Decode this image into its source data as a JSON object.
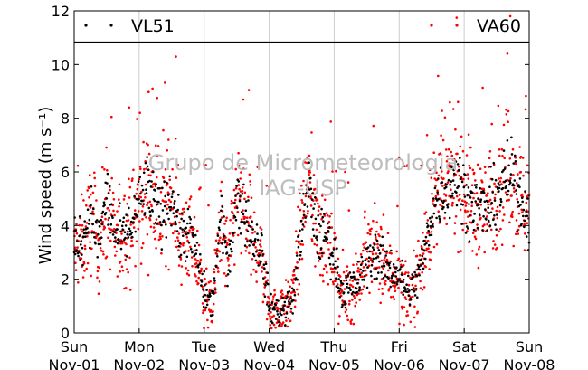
{
  "chart_data": {
    "type": "scatter",
    "title": "",
    "xlabel": "",
    "ylabel": "Wind speed (m s⁻¹)",
    "ylim": [
      0,
      12
    ],
    "y_ticks": [
      "0",
      "2",
      "4",
      "6",
      "8",
      "10",
      "12"
    ],
    "x_ticks": [
      {
        "day": "Sun",
        "date": "Nov-01"
      },
      {
        "day": "Mon",
        "date": "Nov-02"
      },
      {
        "day": "Tue",
        "date": "Nov-03"
      },
      {
        "day": "Wed",
        "date": "Nov-04"
      },
      {
        "day": "Thu",
        "date": "Nov-05"
      },
      {
        "day": "Fri",
        "date": "Nov-06"
      },
      {
        "day": "Sat",
        "date": "Nov-07"
      },
      {
        "day": "Sun",
        "date": "Nov-08"
      }
    ],
    "xlim": [
      "Nov-01",
      "Nov-08"
    ],
    "grid": "vertical",
    "legend_placement": "top",
    "watermark": {
      "line1": "Grupo de Micrometeorologia",
      "line2": "IAG-USP"
    },
    "series": [
      {
        "name": "VL51",
        "color": "#000000",
        "marker": "dot",
        "profile": [
          [
            "Nov-01 00:00",
            3.2
          ],
          [
            "Nov-01 03:00",
            3.5
          ],
          [
            "Nov-01 06:00",
            4.5
          ],
          [
            "Nov-01 09:00",
            3.3
          ],
          [
            "Nov-01 12:00",
            5.2
          ],
          [
            "Nov-01 15:00",
            3.6
          ],
          [
            "Nov-01 18:00",
            3.5
          ],
          [
            "Nov-01 21:00",
            3.9
          ],
          [
            "Nov-02 00:00",
            4.8
          ],
          [
            "Nov-02 03:00",
            5.5
          ],
          [
            "Nov-02 06:00",
            4.6
          ],
          [
            "Nov-02 09:00",
            4.5
          ],
          [
            "Nov-02 12:00",
            5.3
          ],
          [
            "Nov-02 15:00",
            3.6
          ],
          [
            "Nov-02 18:00",
            3.8
          ],
          [
            "Nov-02 21:00",
            3.0
          ],
          [
            "Nov-03 00:00",
            1.5
          ],
          [
            "Nov-03 03:00",
            1.0
          ],
          [
            "Nov-03 06:00",
            4.2
          ],
          [
            "Nov-03 09:00",
            2.6
          ],
          [
            "Nov-03 12:00",
            5.0
          ],
          [
            "Nov-03 15:00",
            4.5
          ],
          [
            "Nov-03 18:00",
            3.5
          ],
          [
            "Nov-03 21:00",
            3.2
          ],
          [
            "Nov-04 00:00",
            1.0
          ],
          [
            "Nov-04 03:00",
            0.8
          ],
          [
            "Nov-04 06:00",
            0.9
          ],
          [
            "Nov-04 09:00",
            1.4
          ],
          [
            "Nov-04 12:00",
            4.0
          ],
          [
            "Nov-04 15:00",
            5.4
          ],
          [
            "Nov-04 18:00",
            3.5
          ],
          [
            "Nov-04 21:00",
            3.7
          ],
          [
            "Nov-05 00:00",
            2.8
          ],
          [
            "Nov-05 03:00",
            1.5
          ],
          [
            "Nov-05 06:00",
            1.7
          ],
          [
            "Nov-05 09:00",
            1.9
          ],
          [
            "Nov-05 12:00",
            2.6
          ],
          [
            "Nov-05 15:00",
            3.0
          ],
          [
            "Nov-05 18:00",
            2.6
          ],
          [
            "Nov-05 21:00",
            2.4
          ],
          [
            "Nov-06 00:00",
            2.2
          ],
          [
            "Nov-06 03:00",
            1.5
          ],
          [
            "Nov-06 06:00",
            1.8
          ],
          [
            "Nov-06 09:00",
            2.8
          ],
          [
            "Nov-06 12:00",
            4.5
          ],
          [
            "Nov-06 15:00",
            5.2
          ],
          [
            "Nov-06 18:00",
            5.4
          ],
          [
            "Nov-06 21:00",
            5.9
          ],
          [
            "Nov-07 00:00",
            5.2
          ],
          [
            "Nov-07 03:00",
            4.8
          ],
          [
            "Nov-07 06:00",
            4.7
          ],
          [
            "Nov-07 09:00",
            4.5
          ],
          [
            "Nov-07 12:00",
            5.2
          ],
          [
            "Nov-07 15:00",
            5.6
          ],
          [
            "Nov-07 18:00",
            5.8
          ],
          [
            "Nov-07 21:00",
            5.0
          ],
          [
            "Nov-08 00:00",
            4.2
          ]
        ],
        "n_points": 900
      },
      {
        "name": "VA60",
        "color": "#ff0000",
        "marker": "dot",
        "profile": [
          [
            "Nov-01 00:00",
            3.0
          ],
          [
            "Nov-01 03:00",
            3.3
          ],
          [
            "Nov-01 06:00",
            4.3
          ],
          [
            "Nov-01 09:00",
            3.2
          ],
          [
            "Nov-01 12:00",
            4.8
          ],
          [
            "Nov-01 15:00",
            3.4
          ],
          [
            "Nov-01 18:00",
            3.5
          ],
          [
            "Nov-01 21:00",
            4.0
          ],
          [
            "Nov-02 00:00",
            4.7
          ],
          [
            "Nov-02 03:00",
            5.4
          ],
          [
            "Nov-02 06:00",
            4.6
          ],
          [
            "Nov-02 09:00",
            4.5
          ],
          [
            "Nov-02 12:00",
            5.4
          ],
          [
            "Nov-02 15:00",
            3.5
          ],
          [
            "Nov-02 18:00",
            3.6
          ],
          [
            "Nov-02 21:00",
            2.8
          ],
          [
            "Nov-03 00:00",
            1.4
          ],
          [
            "Nov-03 03:00",
            0.9
          ],
          [
            "Nov-03 06:00",
            4.0
          ],
          [
            "Nov-03 09:00",
            2.6
          ],
          [
            "Nov-03 12:00",
            5.2
          ],
          [
            "Nov-03 15:00",
            4.3
          ],
          [
            "Nov-03 18:00",
            3.3
          ],
          [
            "Nov-03 21:00",
            3.0
          ],
          [
            "Nov-04 00:00",
            1.0
          ],
          [
            "Nov-04 03:00",
            0.8
          ],
          [
            "Nov-04 06:00",
            0.9
          ],
          [
            "Nov-04 09:00",
            1.5
          ],
          [
            "Nov-04 12:00",
            4.1
          ],
          [
            "Nov-04 15:00",
            5.6
          ],
          [
            "Nov-04 18:00",
            3.6
          ],
          [
            "Nov-04 21:00",
            3.6
          ],
          [
            "Nov-05 00:00",
            2.7
          ],
          [
            "Nov-05 03:00",
            1.4
          ],
          [
            "Nov-05 06:00",
            1.6
          ],
          [
            "Nov-05 09:00",
            2.0
          ],
          [
            "Nov-05 12:00",
            2.8
          ],
          [
            "Nov-05 15:00",
            3.1
          ],
          [
            "Nov-05 18:00",
            2.4
          ],
          [
            "Nov-05 21:00",
            2.3
          ],
          [
            "Nov-06 00:00",
            2.0
          ],
          [
            "Nov-06 03:00",
            1.4
          ],
          [
            "Nov-06 06:00",
            1.9
          ],
          [
            "Nov-06 09:00",
            2.9
          ],
          [
            "Nov-06 12:00",
            4.4
          ],
          [
            "Nov-06 15:00",
            5.3
          ],
          [
            "Nov-06 18:00",
            5.5
          ],
          [
            "Nov-06 21:00",
            6.2
          ],
          [
            "Nov-07 00:00",
            5.4
          ],
          [
            "Nov-07 03:00",
            4.7
          ],
          [
            "Nov-07 06:00",
            4.6
          ],
          [
            "Nov-07 09:00",
            4.6
          ],
          [
            "Nov-07 12:00",
            5.4
          ],
          [
            "Nov-07 15:00",
            5.9
          ],
          [
            "Nov-07 18:00",
            6.0
          ],
          [
            "Nov-07 21:00",
            5.1
          ],
          [
            "Nov-08 00:00",
            4.3
          ]
        ],
        "n_points": 1400
      }
    ]
  }
}
